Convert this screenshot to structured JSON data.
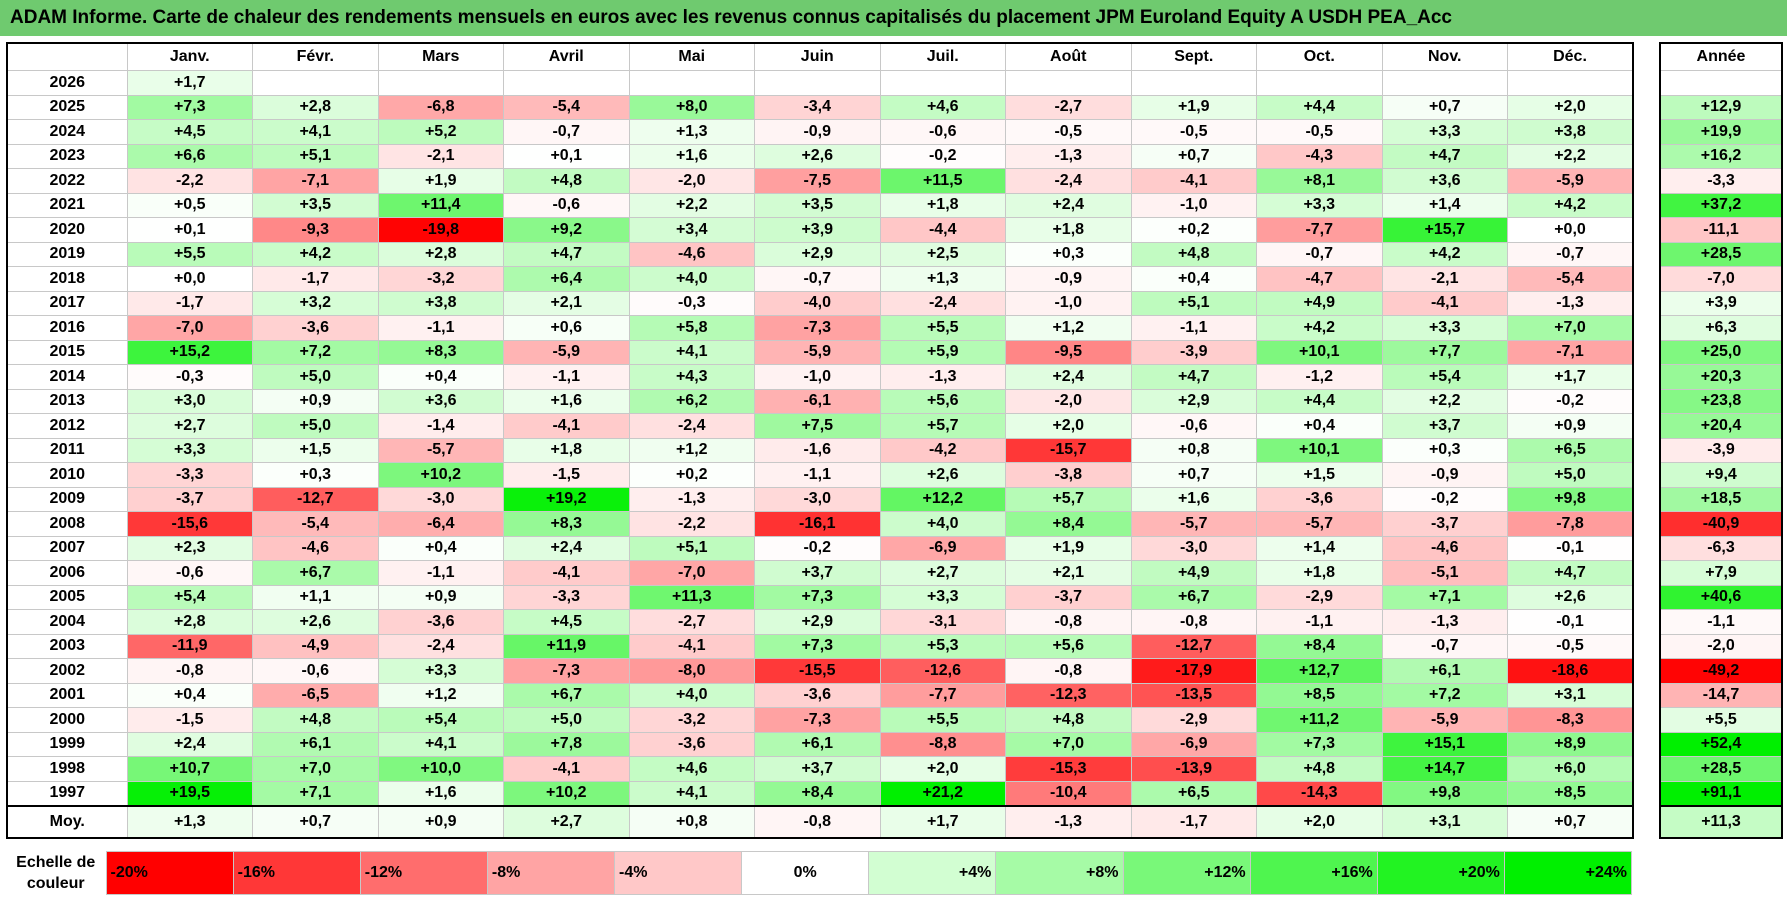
{
  "title": "ADAM Informe. Carte de chaleur des rendements mensuels en euros avec les revenus connus capitalisés du placement JPM Euroland Equity A USDH PEA_Acc",
  "chart_data": {
    "type": "heatmap",
    "title": "ADAM Informe. Carte de chaleur des rendements mensuels en euros avec les revenus connus capitalisés du placement JPM Euroland Equity A USDH PEA_Acc",
    "columns": [
      "Janv.",
      "Févr.",
      "Mars",
      "Avril",
      "Mai",
      "Juin",
      "Juil.",
      "Août",
      "Sept.",
      "Oct.",
      "Nov.",
      "Déc."
    ],
    "annual_header": "Année",
    "rows": [
      {
        "year": "2026",
        "months": [
          "+1,7",
          "",
          "",
          "",
          "",
          "",
          "",
          "",
          "",
          "",
          "",
          ""
        ],
        "annual": ""
      },
      {
        "year": "2025",
        "months": [
          "+7,3",
          "+2,8",
          "-6,8",
          "-5,4",
          "+8,0",
          "-3,4",
          "+4,6",
          "-2,7",
          "+1,9",
          "+4,4",
          "+0,7",
          "+2,0"
        ],
        "annual": "+12,9"
      },
      {
        "year": "2024",
        "months": [
          "+4,5",
          "+4,1",
          "+5,2",
          "-0,7",
          "+1,3",
          "-0,9",
          "-0,6",
          "-0,5",
          "-0,5",
          "-0,5",
          "+3,3",
          "+3,8"
        ],
        "annual": "+19,9"
      },
      {
        "year": "2023",
        "months": [
          "+6,6",
          "+5,1",
          "-2,1",
          "+0,1",
          "+1,6",
          "+2,6",
          "-0,2",
          "-1,3",
          "+0,7",
          "-4,3",
          "+4,7",
          "+2,2"
        ],
        "annual": "+16,2"
      },
      {
        "year": "2022",
        "months": [
          "-2,2",
          "-7,1",
          "+1,9",
          "+4,8",
          "-2,0",
          "-7,5",
          "+11,5",
          "-2,4",
          "-4,1",
          "+8,1",
          "+3,6",
          "-5,9"
        ],
        "annual": "-3,3"
      },
      {
        "year": "2021",
        "months": [
          "+0,5",
          "+3,5",
          "+11,4",
          "-0,6",
          "+2,2",
          "+3,5",
          "+1,8",
          "+2,4",
          "-1,0",
          "+3,3",
          "+1,4",
          "+4,2"
        ],
        "annual": "+37,2"
      },
      {
        "year": "2020",
        "months": [
          "+0,1",
          "-9,3",
          "-19,8",
          "+9,2",
          "+3,4",
          "+3,9",
          "-4,4",
          "+1,8",
          "+0,2",
          "-7,7",
          "+15,7",
          "+0,0"
        ],
        "annual": "-11,1"
      },
      {
        "year": "2019",
        "months": [
          "+5,5",
          "+4,2",
          "+2,8",
          "+4,7",
          "-4,6",
          "+2,9",
          "+2,5",
          "+0,3",
          "+4,8",
          "-0,7",
          "+4,2",
          "-0,7"
        ],
        "annual": "+28,5"
      },
      {
        "year": "2018",
        "months": [
          "+0,0",
          "-1,7",
          "-3,2",
          "+6,4",
          "+4,0",
          "-0,7",
          "+1,3",
          "-0,9",
          "+0,4",
          "-4,7",
          "-2,1",
          "-5,4"
        ],
        "annual": "-7,0"
      },
      {
        "year": "2017",
        "months": [
          "-1,7",
          "+3,2",
          "+3,8",
          "+2,1",
          "-0,3",
          "-4,0",
          "-2,4",
          "-1,0",
          "+5,1",
          "+4,9",
          "-4,1",
          "-1,3"
        ],
        "annual": "+3,9"
      },
      {
        "year": "2016",
        "months": [
          "-7,0",
          "-3,6",
          "-1,1",
          "+0,6",
          "+5,8",
          "-7,3",
          "+5,5",
          "+1,2",
          "-1,1",
          "+4,2",
          "+3,3",
          "+7,0"
        ],
        "annual": "+6,3"
      },
      {
        "year": "2015",
        "months": [
          "+15,2",
          "+7,2",
          "+8,3",
          "-5,9",
          "+4,1",
          "-5,9",
          "+5,9",
          "-9,5",
          "-3,9",
          "+10,1",
          "+7,7",
          "-7,1"
        ],
        "annual": "+25,0"
      },
      {
        "year": "2014",
        "months": [
          "-0,3",
          "+5,0",
          "+0,4",
          "-1,1",
          "+4,3",
          "-1,0",
          "-1,3",
          "+2,4",
          "+4,7",
          "-1,2",
          "+5,4",
          "+1,7"
        ],
        "annual": "+20,3"
      },
      {
        "year": "2013",
        "months": [
          "+3,0",
          "+0,9",
          "+3,6",
          "+1,6",
          "+6,2",
          "-6,1",
          "+5,6",
          "-2,0",
          "+2,9",
          "+4,4",
          "+2,2",
          "-0,2"
        ],
        "annual": "+23,8"
      },
      {
        "year": "2012",
        "months": [
          "+2,7",
          "+5,0",
          "-1,4",
          "-4,1",
          "-2,4",
          "+7,5",
          "+5,7",
          "+2,0",
          "-0,6",
          "+0,4",
          "+3,7",
          "+0,9"
        ],
        "annual": "+20,4"
      },
      {
        "year": "2011",
        "months": [
          "+3,3",
          "+1,5",
          "-5,7",
          "+1,8",
          "+1,2",
          "-1,6",
          "-4,2",
          "-15,7",
          "+0,8",
          "+10,1",
          "+0,3",
          "+6,5"
        ],
        "annual": "-3,9"
      },
      {
        "year": "2010",
        "months": [
          "-3,3",
          "+0,3",
          "+10,2",
          "-1,5",
          "+0,2",
          "-1,1",
          "+2,6",
          "-3,8",
          "+0,7",
          "+1,5",
          "-0,9",
          "+5,0"
        ],
        "annual": "+9,4"
      },
      {
        "year": "2009",
        "months": [
          "-3,7",
          "-12,7",
          "-3,0",
          "+19,2",
          "-1,3",
          "-3,0",
          "+12,2",
          "+5,7",
          "+1,6",
          "-3,6",
          "-0,2",
          "+9,8"
        ],
        "annual": "+18,5"
      },
      {
        "year": "2008",
        "months": [
          "-15,6",
          "-5,4",
          "-6,4",
          "+8,3",
          "-2,2",
          "-16,1",
          "+4,0",
          "+8,4",
          "-5,7",
          "-5,7",
          "-3,7",
          "-7,8"
        ],
        "annual": "-40,9"
      },
      {
        "year": "2007",
        "months": [
          "+2,3",
          "-4,6",
          "+0,4",
          "+2,4",
          "+5,1",
          "-0,2",
          "-6,9",
          "+1,9",
          "-3,0",
          "+1,4",
          "-4,6",
          "-0,1"
        ],
        "annual": "-6,3"
      },
      {
        "year": "2006",
        "months": [
          "-0,6",
          "+6,7",
          "-1,1",
          "-4,1",
          "-7,0",
          "+3,7",
          "+2,7",
          "+2,1",
          "+4,9",
          "+1,8",
          "-5,1",
          "+4,7"
        ],
        "annual": "+7,9"
      },
      {
        "year": "2005",
        "months": [
          "+5,4",
          "+1,1",
          "+0,9",
          "-3,3",
          "+11,3",
          "+7,3",
          "+3,3",
          "-3,7",
          "+6,7",
          "-2,9",
          "+7,1",
          "+2,6"
        ],
        "annual": "+40,6"
      },
      {
        "year": "2004",
        "months": [
          "+2,8",
          "+2,6",
          "-3,6",
          "+4,5",
          "-2,7",
          "+2,9",
          "-3,1",
          "-0,8",
          "-0,8",
          "-1,1",
          "-1,3",
          "-0,1"
        ],
        "annual": "-1,1"
      },
      {
        "year": "2003",
        "months": [
          "-11,9",
          "-4,9",
          "-2,4",
          "+11,9",
          "-4,1",
          "+7,3",
          "+5,3",
          "+5,6",
          "-12,7",
          "+8,4",
          "-0,7",
          "-0,5"
        ],
        "annual": "-2,0"
      },
      {
        "year": "2002",
        "months": [
          "-0,8",
          "-0,6",
          "+3,3",
          "-7,3",
          "-8,0",
          "-15,5",
          "-12,6",
          "-0,8",
          "-17,9",
          "+12,7",
          "+6,1",
          "-18,6"
        ],
        "annual": "-49,2"
      },
      {
        "year": "2001",
        "months": [
          "+0,4",
          "-6,5",
          "+1,2",
          "+6,7",
          "+4,0",
          "-3,6",
          "-7,7",
          "-12,3",
          "-13,5",
          "+8,5",
          "+7,2",
          "+3,1"
        ],
        "annual": "-14,7"
      },
      {
        "year": "2000",
        "months": [
          "-1,5",
          "+4,8",
          "+5,4",
          "+5,0",
          "-3,2",
          "-7,3",
          "+5,5",
          "+4,8",
          "-2,9",
          "+11,2",
          "-5,9",
          "-8,3"
        ],
        "annual": "+5,5"
      },
      {
        "year": "1999",
        "months": [
          "+2,4",
          "+6,1",
          "+4,1",
          "+7,8",
          "-3,6",
          "+6,1",
          "-8,8",
          "+7,0",
          "-6,9",
          "+7,3",
          "+15,1",
          "+8,9"
        ],
        "annual": "+52,4"
      },
      {
        "year": "1998",
        "months": [
          "+10,7",
          "+7,0",
          "+10,0",
          "-4,1",
          "+4,6",
          "+3,7",
          "+2,0",
          "-15,3",
          "-13,9",
          "+4,8",
          "+14,7",
          "+6,0"
        ],
        "annual": "+28,5"
      },
      {
        "year": "1997",
        "months": [
          "+19,5",
          "+7,1",
          "+1,6",
          "+10,2",
          "+4,1",
          "+8,4",
          "+21,2",
          "-10,4",
          "+6,5",
          "-14,3",
          "+9,8",
          "+8,5"
        ],
        "annual": "+91,1"
      }
    ],
    "average": {
      "label": "Moy.",
      "months": [
        "+1,3",
        "+0,7",
        "+0,9",
        "+2,7",
        "+0,8",
        "-0,8",
        "+1,7",
        "-1,3",
        "-1,7",
        "+2,0",
        "+3,1",
        "+0,7"
      ],
      "annual": "+11,3"
    },
    "scale": {
      "label_line1": "Echelle de",
      "label_line2": "couleur",
      "stops": [
        "-20%",
        "-16%",
        "-12%",
        "-8%",
        "-4%",
        "0%",
        "+4%",
        "+8%",
        "+12%",
        "+16%",
        "+20%",
        "+24%"
      ],
      "colors": [
        "#ff0000",
        "#ff3737",
        "#ff6d6d",
        "#ffa4a4",
        "#ffc8c8",
        "#ffffff",
        "#d2fed2",
        "#a6fba6",
        "#79f879",
        "#4ff54f",
        "#22f322",
        "#00f000"
      ]
    }
  }
}
